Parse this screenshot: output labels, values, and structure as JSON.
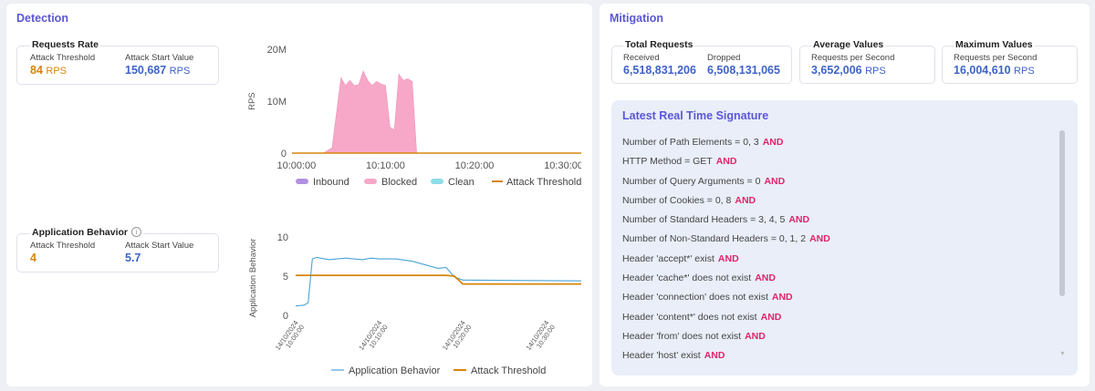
{
  "detection": {
    "title": "Detection",
    "requests_rate": {
      "title": "Requests Rate",
      "threshold_label": "Attack Threshold",
      "threshold_value": "84",
      "threshold_unit": "RPS",
      "start_label": "Attack Start Value",
      "start_value": "150,687",
      "start_unit": "RPS"
    },
    "app_behavior": {
      "title": "Application Behavior",
      "info_icon": "i",
      "threshold_label": "Attack Threshold",
      "threshold_value": "4",
      "start_label": "Attack Start Value",
      "start_value": "5.7"
    }
  },
  "mitigation": {
    "title": "Mitigation",
    "total_requests": {
      "title": "Total Requests",
      "received_label": "Received",
      "received_value": "6,518,831,206",
      "dropped_label": "Dropped",
      "dropped_value": "6,508,131,065"
    },
    "average_values": {
      "title": "Average Values",
      "label": "Requests per Second",
      "value": "3,652,006",
      "unit": "RPS"
    },
    "maximum_values": {
      "title": "Maximum Values",
      "label": "Requests per Second",
      "value": "16,004,610",
      "unit": "RPS"
    },
    "signature": {
      "title": "Latest Real Time Signature",
      "items": [
        {
          "text": "Number of Path Elements = 0, 3",
          "op": "AND"
        },
        {
          "text": "HTTP Method = GET",
          "op": "AND"
        },
        {
          "text": "Number of Query Arguments = 0",
          "op": "AND"
        },
        {
          "text": "Number of Cookies = 0, 8",
          "op": "AND"
        },
        {
          "text": "Number of Standard Headers = 3, 4, 5",
          "op": "AND"
        },
        {
          "text": "Number of Non-Standard Headers = 0, 1, 2",
          "op": "AND"
        },
        {
          "text": "Header 'accept*' exist",
          "op": "AND"
        },
        {
          "text": "Header 'cache*' does not exist",
          "op": "AND"
        },
        {
          "text": "Header 'connection' does not exist",
          "op": "AND"
        },
        {
          "text": "Header 'content*' does not exist",
          "op": "AND"
        },
        {
          "text": "Header 'from' does not exist",
          "op": "AND"
        },
        {
          "text": "Header 'host' exist",
          "op": "AND"
        }
      ]
    }
  },
  "colors": {
    "accent": "#5b57d6",
    "threshold_orange": "#d6850b",
    "value_blue": "#3e63c9",
    "blocked_pink": "#f7a8c9",
    "inbound_purple": "#b190e0",
    "clean_cyan": "#8fdde6",
    "behavior_blue": "#4aa3d8",
    "and_pink": "#e0246a"
  },
  "chart_data": [
    {
      "type": "area",
      "ylabel": "RPS",
      "x_ticks": [
        "10:00:00",
        "10:10:00",
        "10:20:00",
        "10:30:00"
      ],
      "y_ticks": [
        "0",
        "10M",
        "20M"
      ],
      "ylim": [
        0,
        20000000
      ],
      "xlim": [
        "09:59:30",
        "10:32:30"
      ],
      "legend_position": "bottom",
      "x": [
        "09:59:30",
        "10:03:00",
        "10:04:00",
        "10:05:00",
        "10:05:30",
        "10:06:00",
        "10:06:30",
        "10:07:00",
        "10:07:30",
        "10:08:00",
        "10:08:30",
        "10:09:00",
        "10:09:30",
        "10:10:00",
        "10:10:30",
        "10:11:00",
        "10:11:30",
        "10:12:00",
        "10:12:30",
        "10:13:00",
        "10:13:30",
        "10:14:00",
        "10:32:30"
      ],
      "series": [
        {
          "name": "Inbound",
          "values": [
            0,
            0,
            0,
            0,
            0,
            0,
            0,
            0,
            0,
            0,
            0,
            0,
            0,
            0,
            0,
            0,
            0,
            0,
            0,
            0,
            0,
            0,
            0
          ]
        },
        {
          "name": "Blocked",
          "values": [
            0,
            0,
            1000000,
            14500000,
            13000000,
            14000000,
            13000000,
            13200000,
            15800000,
            14000000,
            13000000,
            13800000,
            13300000,
            13000000,
            5000000,
            4500000,
            15200000,
            14000000,
            14300000,
            13800000,
            0,
            0,
            0
          ]
        },
        {
          "name": "Clean",
          "values": [
            0,
            0,
            0,
            0,
            0,
            0,
            0,
            0,
            0,
            0,
            0,
            0,
            0,
            0,
            0,
            0,
            0,
            0,
            0,
            0,
            0,
            0,
            0
          ]
        },
        {
          "name": "Attack Threshold",
          "values": [
            84,
            84,
            84,
            84,
            84,
            84,
            84,
            84,
            84,
            84,
            84,
            84,
            84,
            84,
            84,
            84,
            84,
            84,
            84,
            84,
            84,
            84,
            84
          ]
        }
      ]
    },
    {
      "type": "line",
      "ylabel": "Application Behavior",
      "x_ticks": [
        "14/10/2024\n10:00:00",
        "14/10/2024\n10:10:00",
        "14/10/2024\n10:20:00",
        "14/10/2024\n10:30:00"
      ],
      "y_ticks": [
        "0",
        "5",
        "10"
      ],
      "ylim": [
        0,
        10
      ],
      "xlim": [
        "10:00:00",
        "10:34:30"
      ],
      "legend_position": "bottom",
      "x": [
        "10:00:00",
        "10:01:00",
        "10:01:30",
        "10:02:00",
        "10:02:30",
        "10:04:00",
        "10:06:00",
        "10:08:00",
        "10:09:00",
        "10:10:00",
        "10:12:00",
        "10:14:00",
        "10:16:00",
        "10:17:00",
        "10:18:00",
        "10:19:00",
        "10:20:00",
        "10:34:30"
      ],
      "series": [
        {
          "name": "Application Behavior",
          "values": [
            1.2,
            1.3,
            1.6,
            7.2,
            7.4,
            7.1,
            7.3,
            7.1,
            7.3,
            7.2,
            7.2,
            6.9,
            6.3,
            6.0,
            6.1,
            4.9,
            4.5,
            4.4
          ]
        },
        {
          "name": "Attack Threshold",
          "values": [
            5.1,
            5.1,
            5.1,
            5.1,
            5.1,
            5.1,
            5.1,
            5.1,
            5.1,
            5.1,
            5.1,
            5.1,
            5.1,
            5.1,
            5.1,
            5.0,
            4.0,
            4.0
          ]
        }
      ]
    }
  ]
}
